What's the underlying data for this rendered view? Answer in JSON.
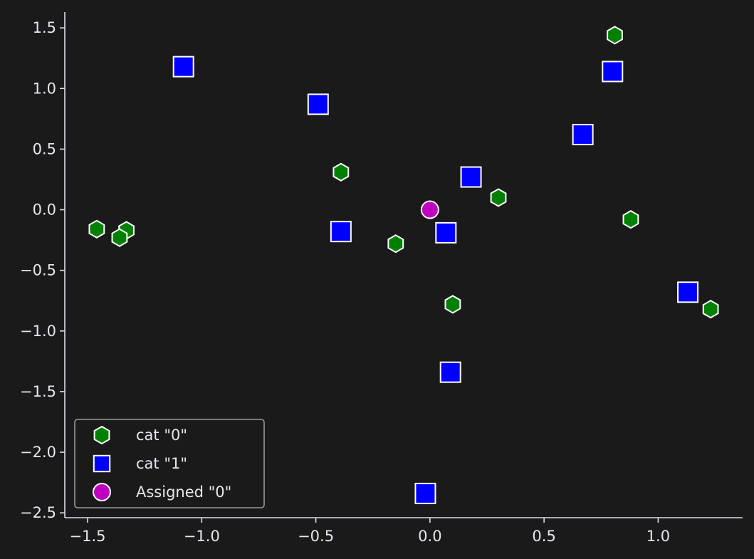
{
  "colors": {
    "background": "#1a1a1a",
    "axis": "#dcdcec",
    "marker_edge": "#ffffff",
    "cat0": "#008000",
    "cat1": "#0000ff",
    "assigned": "#bf00bf",
    "legend_border": "#9a9a9a"
  },
  "chart_data": {
    "type": "scatter",
    "title": "",
    "xlabel": "",
    "ylabel": "",
    "xlim": [
      -1.6,
      1.37
    ],
    "ylim": [
      -2.54,
      1.63
    ],
    "x_ticks": [
      -1.5,
      -1.0,
      -0.5,
      0.0,
      0.5,
      1.0
    ],
    "x_tick_labels": [
      "−1.5",
      "−1.0",
      "−0.5",
      "0.0",
      "0.5",
      "1.0"
    ],
    "y_ticks": [
      1.5,
      1.0,
      0.5,
      0.0,
      -0.5,
      -1.0,
      -1.5,
      -2.0,
      -2.5
    ],
    "y_tick_labels": [
      "1.5",
      "1.0",
      "0.5",
      "0.0",
      "−0.5",
      "−1.0",
      "−1.5",
      "−2.0",
      "−2.5"
    ],
    "grid": false,
    "legend_position": "lower-left",
    "series": [
      {
        "name": "cat \"0\"",
        "marker": "hexagon",
        "color": "#008000",
        "points": [
          {
            "x": 0.81,
            "y": 1.44
          },
          {
            "x": -0.39,
            "y": 0.31
          },
          {
            "x": 0.3,
            "y": 0.1
          },
          {
            "x": 0.88,
            "y": -0.08
          },
          {
            "x": -1.46,
            "y": -0.16
          },
          {
            "x": -1.33,
            "y": -0.17
          },
          {
            "x": -1.36,
            "y": -0.23
          },
          {
            "x": -0.15,
            "y": -0.28
          },
          {
            "x": 0.1,
            "y": -0.78
          },
          {
            "x": 1.23,
            "y": -0.82
          }
        ]
      },
      {
        "name": "cat \"1\"",
        "marker": "square",
        "color": "#0000ff",
        "points": [
          {
            "x": -1.08,
            "y": 1.18
          },
          {
            "x": 0.8,
            "y": 1.14
          },
          {
            "x": -0.49,
            "y": 0.87
          },
          {
            "x": 0.67,
            "y": 0.62
          },
          {
            "x": 0.18,
            "y": 0.27
          },
          {
            "x": -0.39,
            "y": -0.18
          },
          {
            "x": 0.07,
            "y": -0.19
          },
          {
            "x": 1.13,
            "y": -0.68
          },
          {
            "x": 0.09,
            "y": -1.34
          },
          {
            "x": -0.02,
            "y": -2.34
          }
        ]
      },
      {
        "name": "Assigned \"0\"",
        "marker": "circle",
        "color": "#bf00bf",
        "points": [
          {
            "x": 0.0,
            "y": 0.0
          }
        ]
      }
    ]
  }
}
